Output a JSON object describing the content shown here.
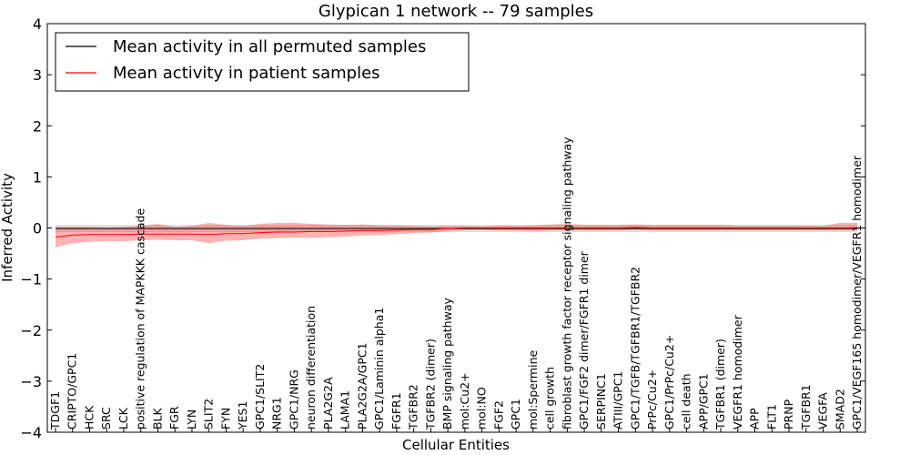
{
  "chart_data": {
    "type": "line",
    "title": "Glypican 1 network -- 79 samples",
    "xlabel": "Cellular Entities",
    "ylabel": "Inferred Activity",
    "ylim": [
      -4,
      4
    ],
    "yticks": [
      "−4",
      "−3",
      "−2",
      "−1",
      "0",
      "1",
      "2",
      "3",
      "4"
    ],
    "legend_position": "top-left",
    "categories": [
      "TDGF1",
      "CRIPTO/GPC1",
      "HCK",
      "SRC",
      "LCK",
      "positive regulation of MAPKKK cascade",
      "BLK",
      "FGR",
      "LYN",
      "SLIT2",
      "FYN",
      "YES1",
      "GPC1/SLIT2",
      "NRG1",
      "GPC1/NRG",
      "neuron differentiation",
      "PLA2G2A",
      "LAMA1",
      "PLA2G2A/GPC1",
      "GPC1/Laminin alpha1",
      "FGFR1",
      "TGFBR2",
      "TGFBR2 (dimer)",
      "BMP signaling pathway",
      "mol:Cu2+",
      "mol:NO",
      "FGF2",
      "GPC1",
      "mol:Spermine",
      "cell growth",
      "fibroblast growth factor receptor signaling pathway",
      "GPC1/FGF2 dimer/FGFR1 dimer",
      "SERPINC1",
      "ATIII/GPC1",
      "GPC1/TGFB/TGFBR1/TGFBR2",
      "PrPc/Cu2+",
      "GPC1/PrPc/Cu2+",
      "cell death",
      "APP/GPC1",
      "TGFBR1 (dimer)",
      "VEGFR1 homodimer",
      "APP",
      "FLT1",
      "PRNP",
      "TGFBR1",
      "VEGFA",
      "SMAD2",
      "GPC1/VEGF165 homodimer/VEGFR1 homodimer"
    ],
    "series": [
      {
        "name": "Mean activity in all permuted samples",
        "color": "#000000",
        "values": [
          -0.01,
          -0.01,
          -0.01,
          -0.01,
          -0.01,
          -0.01,
          -0.01,
          -0.01,
          -0.01,
          -0.01,
          -0.01,
          -0.01,
          -0.01,
          -0.01,
          -0.01,
          -0.01,
          -0.01,
          -0.01,
          -0.01,
          -0.01,
          -0.01,
          -0.01,
          -0.01,
          -0.01,
          -0.01,
          -0.01,
          -0.01,
          -0.01,
          -0.01,
          -0.01,
          -0.01,
          -0.01,
          -0.01,
          -0.01,
          -0.01,
          -0.01,
          -0.01,
          -0.01,
          -0.01,
          -0.01,
          -0.01,
          -0.01,
          -0.01,
          -0.01,
          -0.01,
          -0.01,
          -0.01,
          -0.01
        ],
        "band_lower": [
          -0.08,
          -0.08,
          -0.08,
          -0.08,
          -0.08,
          -0.08,
          -0.08,
          -0.08,
          -0.08,
          -0.08,
          -0.08,
          -0.08,
          -0.08,
          -0.08,
          -0.08,
          -0.08,
          -0.08,
          -0.08,
          -0.08,
          -0.08,
          -0.08,
          -0.08,
          -0.08,
          -0.08,
          -0.08,
          -0.08,
          -0.08,
          -0.08,
          -0.08,
          -0.08,
          -0.08,
          -0.08,
          -0.08,
          -0.08,
          -0.08,
          -0.08,
          -0.08,
          -0.08,
          -0.08,
          -0.08,
          -0.08,
          -0.08,
          -0.08,
          -0.08,
          -0.08,
          -0.08,
          -0.08,
          -0.08
        ],
        "band_upper": [
          0.06,
          0.06,
          0.06,
          0.06,
          0.06,
          0.06,
          0.06,
          0.06,
          0.06,
          0.06,
          0.06,
          0.06,
          0.06,
          0.06,
          0.06,
          0.06,
          0.06,
          0.06,
          0.06,
          0.06,
          0.06,
          0.06,
          0.06,
          0.06,
          0.06,
          0.06,
          0.06,
          0.06,
          0.06,
          0.06,
          0.06,
          0.06,
          0.06,
          0.06,
          0.06,
          0.06,
          0.06,
          0.06,
          0.06,
          0.06,
          0.06,
          0.06,
          0.06,
          0.06,
          0.06,
          0.06,
          0.06,
          0.06
        ]
      },
      {
        "name": "Mean activity in patient samples",
        "color": "#ff0000",
        "values": [
          -0.18,
          -0.14,
          -0.13,
          -0.13,
          -0.13,
          -0.12,
          -0.12,
          -0.12,
          -0.12,
          -0.13,
          -0.11,
          -0.11,
          -0.09,
          -0.08,
          -0.08,
          -0.07,
          -0.07,
          -0.06,
          -0.05,
          -0.05,
          -0.04,
          -0.03,
          -0.03,
          -0.01,
          0.0,
          0.0,
          0.0,
          0.0,
          0.0,
          0.0,
          0.0,
          0.0,
          0.0,
          0.0,
          0.01,
          0.0,
          0.0,
          0.0,
          0.0,
          0.0,
          0.0,
          0.0,
          0.0,
          0.0,
          0.0,
          0.0,
          0.0,
          0.0
        ],
        "band_lower": [
          -0.38,
          -0.3,
          -0.27,
          -0.26,
          -0.26,
          -0.24,
          -0.23,
          -0.24,
          -0.24,
          -0.3,
          -0.25,
          -0.24,
          -0.21,
          -0.2,
          -0.19,
          -0.19,
          -0.18,
          -0.17,
          -0.15,
          -0.14,
          -0.12,
          -0.1,
          -0.09,
          -0.06,
          -0.04,
          -0.04,
          -0.05,
          -0.05,
          -0.06,
          -0.05,
          -0.05,
          -0.05,
          -0.05,
          -0.05,
          -0.04,
          -0.05,
          -0.05,
          -0.05,
          -0.05,
          -0.05,
          -0.05,
          -0.05,
          -0.05,
          -0.05,
          -0.05,
          -0.05,
          -0.05,
          -0.05
        ],
        "band_upper": [
          0.02,
          0.02,
          0.02,
          0.01,
          0.02,
          0.04,
          0.08,
          0.02,
          0.04,
          0.1,
          0.06,
          0.04,
          0.08,
          0.1,
          0.1,
          0.08,
          0.07,
          0.06,
          0.07,
          0.05,
          0.05,
          0.04,
          0.03,
          0.04,
          0.04,
          0.03,
          0.05,
          0.04,
          0.05,
          0.07,
          0.08,
          0.06,
          0.06,
          0.06,
          0.07,
          0.06,
          0.06,
          0.06,
          0.06,
          0.06,
          0.05,
          0.05,
          0.05,
          0.05,
          0.05,
          0.04,
          0.1,
          0.1
        ]
      }
    ]
  }
}
